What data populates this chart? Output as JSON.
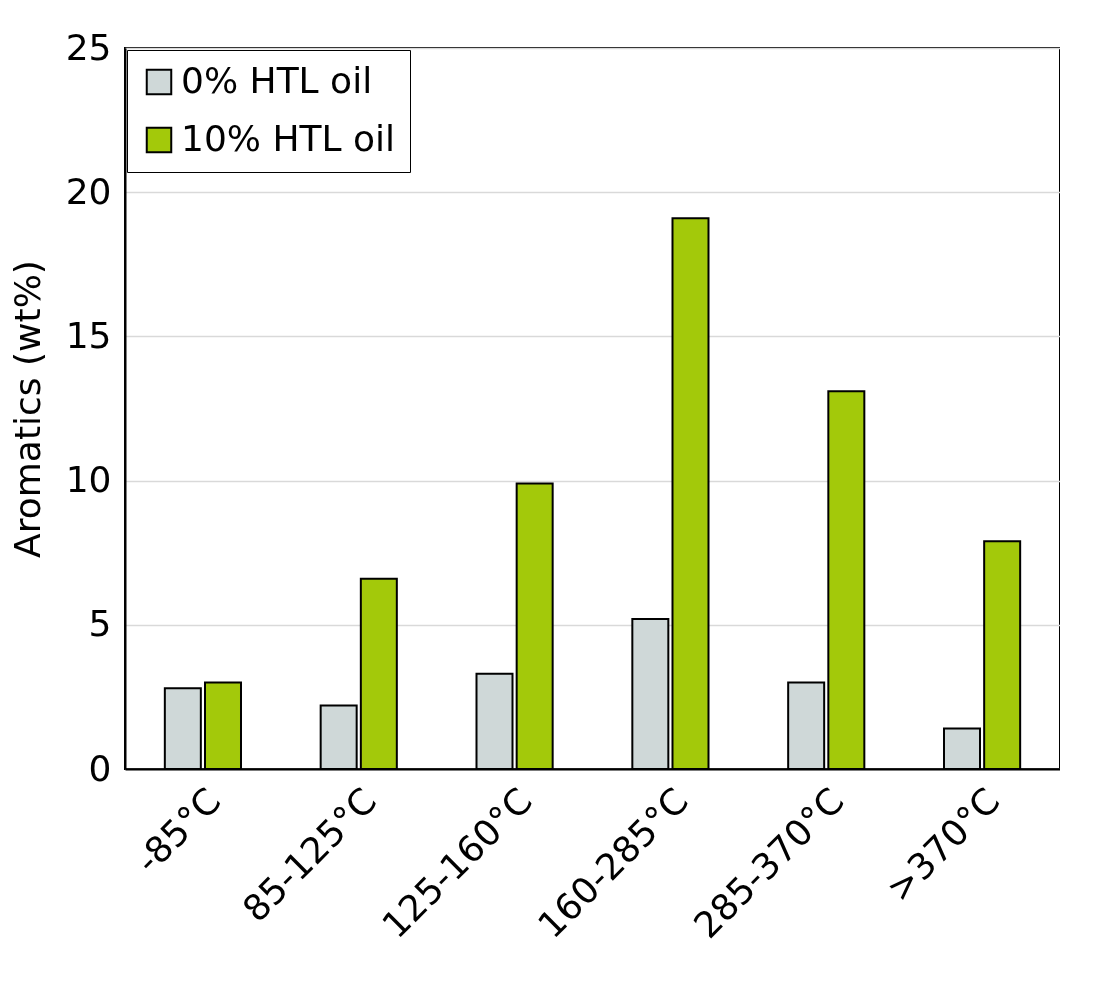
{
  "chart_data": {
    "type": "bar",
    "ylabel": "Aromatics (wt%)",
    "categories": [
      "-85°C",
      "85-125°C",
      "125-160°C",
      "160-285°C",
      "285-370°C",
      ">370°C"
    ],
    "series": [
      {
        "name": "0% HTL oil",
        "color": "#cfd8d8",
        "values": [
          2.8,
          2.2,
          3.3,
          5.2,
          3.0,
          1.4
        ]
      },
      {
        "name": "10% HTL oil",
        "color": "#a3c90a",
        "values": [
          3.0,
          6.6,
          9.9,
          19.1,
          13.1,
          7.9
        ]
      }
    ],
    "ylim": [
      0,
      25
    ],
    "yticks": [
      0,
      5,
      10,
      15,
      20,
      25
    ],
    "grid": "y",
    "legend": "top left"
  }
}
